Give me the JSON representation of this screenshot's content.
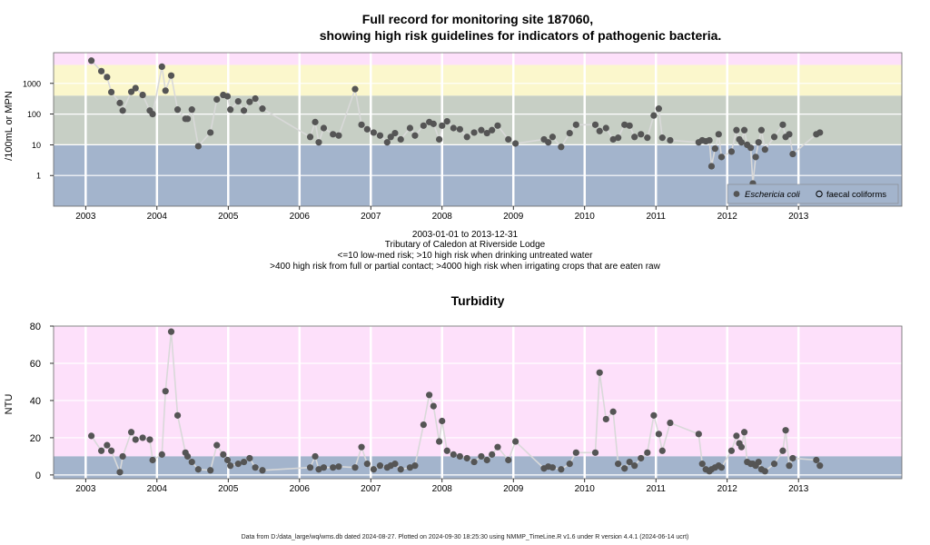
{
  "header": {
    "title_line1": "Full record for monitoring site 187060,",
    "title_line2": "showing high risk guidelines for indicators of pathogenic bacteria."
  },
  "caption": {
    "line1": "2003-01-01 to 2013-12-31",
    "line2": "Tributary of Caledon at Riverside Lodge",
    "line3": "<=10 low-med risk; >10 high risk when drinking untreated water",
    "line4": ">400 high risk from full or partial contact; >4000 high risk when irrigating crops that are eaten raw"
  },
  "footer": {
    "text": "Data from D:/data_large/wq/wms.db dated 2024-08-27. Plotted on 2024-09-30 18:25:30 using NMMP_TimeLine.R v1.6 under R version 4.4.1 (2024-06-14 ucrt)"
  },
  "colors": {
    "band_low": "#a3b4cc",
    "band_mid": "#c7cfc5",
    "band_high": "#fbf7cc",
    "band_top": "#fde0fa",
    "point": "#555555",
    "line": "#d9d9d9",
    "grid": "#ffffff"
  },
  "chart_data": [
    {
      "type": "scatter",
      "scale": "log",
      "ylabel": "/100mL or MPN",
      "ylim": [
        0.1,
        10000
      ],
      "yticks": [
        "1",
        "10",
        "100",
        "1000"
      ],
      "xticks": [
        "2003",
        "2004",
        "2005",
        "2006",
        "2007",
        "2008",
        "2009",
        "2010",
        "2011",
        "2012",
        "2013"
      ],
      "bands": [
        10,
        400,
        4000
      ],
      "legend": {
        "position": "bottom-right",
        "entries": [
          "Eschericia coli",
          "faecal coliforms"
        ]
      },
      "series": [
        {
          "name": "Eschericia coli",
          "points": [
            [
              2003.08,
              5500
            ],
            [
              2003.22,
              2500
            ],
            [
              2003.3,
              1600
            ],
            [
              2003.36,
              520
            ],
            [
              2003.48,
              230
            ],
            [
              2003.52,
              130
            ],
            [
              2003.64,
              530
            ],
            [
              2003.7,
              700
            ],
            [
              2003.8,
              420
            ],
            [
              2003.9,
              130
            ],
            [
              2003.94,
              100
            ],
            [
              2004.07,
              3500
            ],
            [
              2004.12,
              580
            ],
            [
              2004.2,
              1800
            ],
            [
              2004.29,
              140
            ],
            [
              2004.4,
              70
            ],
            [
              2004.43,
              70
            ],
            [
              2004.49,
              140
            ],
            [
              2004.58,
              9
            ],
            [
              2004.75,
              25
            ],
            [
              2004.84,
              300
            ],
            [
              2004.93,
              420
            ],
            [
              2004.99,
              380
            ],
            [
              2005.03,
              140
            ],
            [
              2005.14,
              260
            ],
            [
              2005.22,
              130
            ],
            [
              2005.3,
              250
            ],
            [
              2005.38,
              320
            ],
            [
              2005.48,
              150
            ],
            [
              2006.15,
              18
            ],
            [
              2006.22,
              55
            ],
            [
              2006.27,
              12
            ],
            [
              2006.34,
              35
            ],
            [
              2006.47,
              22
            ],
            [
              2006.55,
              20
            ],
            [
              2006.78,
              650
            ],
            [
              2006.87,
              45
            ],
            [
              2006.95,
              32
            ],
            [
              2007.04,
              25
            ],
            [
              2007.13,
              20
            ],
            [
              2007.23,
              12
            ],
            [
              2007.28,
              18
            ],
            [
              2007.34,
              24
            ],
            [
              2007.42,
              15
            ],
            [
              2007.55,
              35
            ],
            [
              2007.62,
              20
            ],
            [
              2007.74,
              42
            ],
            [
              2007.82,
              55
            ],
            [
              2007.88,
              48
            ],
            [
              2007.96,
              15
            ],
            [
              2008.0,
              42
            ],
            [
              2008.07,
              58
            ],
            [
              2008.16,
              35
            ],
            [
              2008.25,
              32
            ],
            [
              2008.35,
              18
            ],
            [
              2008.45,
              25
            ],
            [
              2008.55,
              30
            ],
            [
              2008.63,
              24
            ],
            [
              2008.7,
              30
            ],
            [
              2008.78,
              42
            ],
            [
              2008.93,
              15
            ],
            [
              2009.03,
              11
            ],
            [
              2009.43,
              15
            ],
            [
              2009.49,
              12
            ],
            [
              2009.55,
              18
            ],
            [
              2009.67,
              8.5
            ],
            [
              2009.79,
              24
            ],
            [
              2009.88,
              45
            ],
            [
              2010.15,
              45
            ],
            [
              2010.21,
              28
            ],
            [
              2010.3,
              35
            ],
            [
              2010.4,
              15
            ],
            [
              2010.47,
              17
            ],
            [
              2010.56,
              45
            ],
            [
              2010.63,
              42
            ],
            [
              2010.7,
              18
            ],
            [
              2010.79,
              22
            ],
            [
              2010.88,
              17
            ],
            [
              2010.97,
              90
            ],
            [
              2011.04,
              150
            ],
            [
              2011.09,
              17
            ],
            [
              2011.2,
              14
            ],
            [
              2011.6,
              12
            ],
            [
              2011.65,
              14
            ],
            [
              2011.7,
              13
            ],
            [
              2011.75,
              14
            ],
            [
              2011.78,
              2
            ],
            [
              2011.83,
              7.5
            ],
            [
              2011.88,
              22
            ],
            [
              2011.92,
              4
            ],
            [
              2012.06,
              6
            ],
            [
              2012.13,
              30
            ],
            [
              2012.17,
              15
            ],
            [
              2012.2,
              12
            ],
            [
              2012.24,
              30
            ],
            [
              2012.28,
              10
            ],
            [
              2012.33,
              8
            ],
            [
              2012.36,
              0.55
            ],
            [
              2012.4,
              4
            ],
            [
              2012.44,
              12
            ],
            [
              2012.48,
              30
            ],
            [
              2012.53,
              7
            ],
            [
              2012.66,
              18
            ],
            [
              2012.78,
              45
            ],
            [
              2012.82,
              18
            ],
            [
              2012.87,
              22
            ],
            [
              2012.92,
              5
            ],
            [
              2013.25,
              22
            ],
            [
              2013.3,
              25
            ]
          ]
        }
      ]
    },
    {
      "type": "scatter",
      "title": "Turbidity",
      "ylabel": "NTU",
      "ylim": [
        -2,
        80
      ],
      "yticks": [
        "0",
        "20",
        "40",
        "60",
        "80"
      ],
      "xticks": [
        "2003",
        "2004",
        "2005",
        "2006",
        "2007",
        "2008",
        "2009",
        "2010",
        "2011",
        "2012",
        "2013"
      ],
      "bands": [
        10
      ],
      "series": [
        {
          "name": "Turbidity",
          "points": [
            [
              2003.08,
              21
            ],
            [
              2003.22,
              13
            ],
            [
              2003.3,
              16
            ],
            [
              2003.36,
              13
            ],
            [
              2003.48,
              1.5
            ],
            [
              2003.52,
              10
            ],
            [
              2003.64,
              23
            ],
            [
              2003.7,
              19
            ],
            [
              2003.8,
              20
            ],
            [
              2003.9,
              19
            ],
            [
              2003.94,
              8
            ],
            [
              2004.07,
              11
            ],
            [
              2004.12,
              45
            ],
            [
              2004.2,
              77
            ],
            [
              2004.29,
              32
            ],
            [
              2004.4,
              12
            ],
            [
              2004.43,
              10
            ],
            [
              2004.49,
              7
            ],
            [
              2004.58,
              3
            ],
            [
              2004.75,
              2.5
            ],
            [
              2004.84,
              16
            ],
            [
              2004.93,
              11
            ],
            [
              2004.99,
              8
            ],
            [
              2005.03,
              5
            ],
            [
              2005.14,
              6
            ],
            [
              2005.22,
              7
            ],
            [
              2005.3,
              9
            ],
            [
              2005.38,
              4
            ],
            [
              2005.48,
              2.5
            ],
            [
              2006.15,
              4
            ],
            [
              2006.22,
              10
            ],
            [
              2006.27,
              3
            ],
            [
              2006.34,
              4
            ],
            [
              2006.47,
              4
            ],
            [
              2006.55,
              4.5
            ],
            [
              2006.78,
              4
            ],
            [
              2006.87,
              15
            ],
            [
              2006.95,
              6
            ],
            [
              2007.04,
              3
            ],
            [
              2007.13,
              5
            ],
            [
              2007.23,
              4
            ],
            [
              2007.28,
              5
            ],
            [
              2007.34,
              6
            ],
            [
              2007.42,
              3
            ],
            [
              2007.55,
              4
            ],
            [
              2007.62,
              5
            ],
            [
              2007.74,
              27
            ],
            [
              2007.82,
              43
            ],
            [
              2007.88,
              37
            ],
            [
              2007.96,
              18
            ],
            [
              2008.0,
              29
            ],
            [
              2008.07,
              13
            ],
            [
              2008.16,
              11
            ],
            [
              2008.25,
              10
            ],
            [
              2008.35,
              9
            ],
            [
              2008.45,
              7
            ],
            [
              2008.55,
              10
            ],
            [
              2008.63,
              8
            ],
            [
              2008.7,
              11
            ],
            [
              2008.78,
              15
            ],
            [
              2008.93,
              8
            ],
            [
              2009.03,
              18
            ],
            [
              2009.43,
              3.5
            ],
            [
              2009.49,
              4.5
            ],
            [
              2009.55,
              4
            ],
            [
              2009.67,
              3
            ],
            [
              2009.79,
              6
            ],
            [
              2009.88,
              12
            ],
            [
              2010.15,
              12
            ],
            [
              2010.21,
              55
            ],
            [
              2010.3,
              30
            ],
            [
              2010.4,
              34
            ],
            [
              2010.47,
              6
            ],
            [
              2010.56,
              3.5
            ],
            [
              2010.63,
              7
            ],
            [
              2010.7,
              5
            ],
            [
              2010.79,
              9
            ],
            [
              2010.88,
              12
            ],
            [
              2010.97,
              32
            ],
            [
              2011.04,
              22
            ],
            [
              2011.09,
              13
            ],
            [
              2011.2,
              28
            ],
            [
              2011.6,
              22
            ],
            [
              2011.65,
              6
            ],
            [
              2011.7,
              3
            ],
            [
              2011.75,
              2
            ],
            [
              2011.78,
              3
            ],
            [
              2011.83,
              4
            ],
            [
              2011.88,
              5
            ],
            [
              2011.92,
              4
            ],
            [
              2012.06,
              13
            ],
            [
              2012.13,
              21
            ],
            [
              2012.17,
              17
            ],
            [
              2012.2,
              15
            ],
            [
              2012.24,
              23
            ],
            [
              2012.28,
              7
            ],
            [
              2012.33,
              6
            ],
            [
              2012.36,
              6
            ],
            [
              2012.4,
              5
            ],
            [
              2012.44,
              7
            ],
            [
              2012.48,
              3
            ],
            [
              2012.53,
              2
            ],
            [
              2012.66,
              6
            ],
            [
              2012.78,
              13
            ],
            [
              2012.82,
              24
            ],
            [
              2012.87,
              5
            ],
            [
              2012.92,
              9
            ],
            [
              2013.25,
              8
            ],
            [
              2013.3,
              5
            ]
          ]
        }
      ]
    }
  ]
}
